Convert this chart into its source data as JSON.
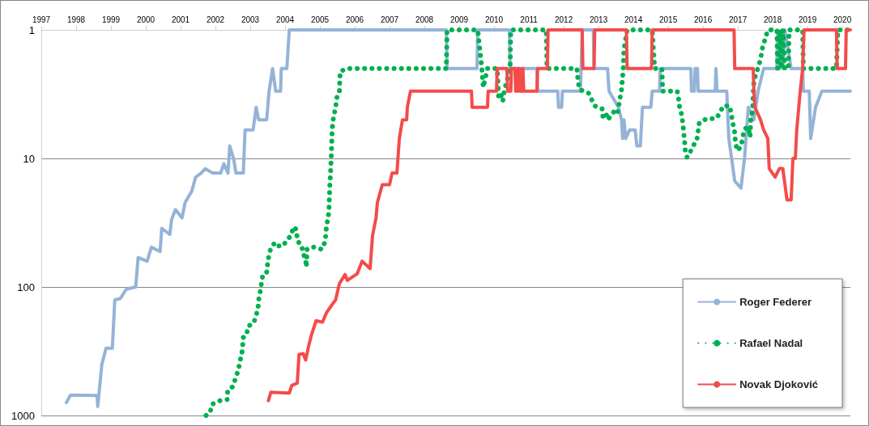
{
  "chart_data": {
    "type": "line",
    "xlim": [
      1997,
      2020.23
    ],
    "xticks": [
      1997,
      1998,
      1999,
      2000,
      2001,
      2002,
      2003,
      2004,
      2005,
      2006,
      2007,
      2008,
      2009,
      2010,
      2011,
      2012,
      2013,
      2014,
      2015,
      2016,
      2017,
      2018,
      2019,
      2020
    ],
    "ylim": [
      1000,
      1
    ],
    "yticks": [
      1,
      10,
      100,
      1000
    ],
    "log": "y",
    "grid": "y",
    "legend": "bottom right",
    "marker": "none",
    "series": [
      {
        "name": "Roger Federer",
        "color": "#95b3d7",
        "line_style": "solid",
        "x": [
          1997.72,
          1997.84,
          1998.6,
          1998.62,
          1998.74,
          1998.86,
          1999.04,
          1999.11,
          1999.27,
          1999.44,
          1999.71,
          1999.78,
          2000.04,
          2000.16,
          2000.41,
          2000.46,
          2000.69,
          2000.74,
          2000.85,
          2001.04,
          2001.13,
          2001.32,
          2001.43,
          2001.59,
          2001.71,
          2001.92,
          2002.15,
          2002.24,
          2002.36,
          2002.41,
          2002.52,
          2002.59,
          2002.8,
          2002.85,
          2003.08,
          2003.17,
          2003.24,
          2003.47,
          2003.54,
          2003.64,
          2003.73,
          2003.87,
          2003.89,
          2004.05,
          2004.12,
          2008.63,
          2008.65,
          2009.51,
          2009.53,
          2010.44,
          2010.46,
          2011.23,
          2011.25,
          2011.83,
          2011.85,
          2011.94,
          2011.96,
          2012.48,
          2012.5,
          2012.53,
          2012.85,
          2012.87,
          2013.26,
          2013.3,
          2013.57,
          2013.66,
          2013.69,
          2013.73,
          2013.78,
          2013.89,
          2014.05,
          2014.1,
          2014.2,
          2014.26,
          2014.5,
          2014.54,
          2014.75,
          2014.77,
          2015.65,
          2015.67,
          2015.75,
          2015.77,
          2015.84,
          2015.86,
          2016.35,
          2016.37,
          2016.4,
          2016.68,
          2016.74,
          2016.91,
          2017.09,
          2017.19,
          2017.3,
          2017.46,
          2017.58,
          2017.74,
          2018.12,
          2018.14,
          2018.2,
          2018.25,
          2018.3,
          2018.35,
          2018.53,
          2018.86,
          2018.88,
          2019.05,
          2019.09,
          2019.23,
          2019.41,
          2020.23
        ],
        "values": [
          794,
          694,
          700,
          850,
          398,
          300,
          300,
          126,
          123,
          104,
          100,
          59,
          63,
          49,
          53,
          35,
          39,
          30,
          25,
          29,
          22,
          18,
          14,
          13,
          12,
          13,
          13,
          11,
          13,
          8,
          10,
          13,
          13,
          6,
          6,
          4,
          5,
          5,
          3,
          2,
          3,
          3,
          2,
          2,
          1,
          1,
          2,
          2,
          1,
          1,
          2,
          2,
          3,
          3,
          4,
          4,
          3,
          3,
          2,
          1,
          1,
          2,
          2,
          3,
          4,
          5,
          7,
          5,
          7,
          6,
          6,
          8,
          8,
          4,
          4,
          3,
          3,
          2,
          2,
          3,
          3,
          2,
          2,
          3,
          3,
          2,
          3,
          3,
          7,
          15,
          17,
          10,
          4,
          5,
          3,
          2,
          2,
          1,
          2,
          1,
          2,
          1,
          2,
          2,
          3,
          3,
          7,
          4,
          3,
          3
        ]
      },
      {
        "name": "Rafael Nadal",
        "color": "#00b050",
        "line_style": "dotted",
        "x": [
          2001.73,
          2001.85,
          2001.9,
          2002.13,
          2002.34,
          2002.35,
          2002.5,
          2002.57,
          2002.66,
          2002.71,
          2002.75,
          2002.78,
          2002.8,
          2002.89,
          2002.94,
          2003.1,
          2003.17,
          2003.22,
          2003.24,
          2003.29,
          2003.33,
          2003.36,
          2003.47,
          2003.5,
          2003.54,
          2003.59,
          2003.71,
          2003.82,
          2003.94,
          2004.05,
          2004.17,
          2004.24,
          2004.33,
          2004.35,
          2004.47,
          2004.52,
          2004.59,
          2004.61,
          2004.63,
          2004.73,
          2004.87,
          2005.05,
          2005.14,
          2005.17,
          2005.19,
          2005.24,
          2005.26,
          2005.28,
          2005.31,
          2005.33,
          2005.35,
          2005.38,
          2005.45,
          2005.49,
          2005.56,
          2005.58,
          2005.79,
          2008.63,
          2008.65,
          2009.53,
          2009.65,
          2009.67,
          2009.69,
          2009.81,
          2010.09,
          2010.13,
          2010.18,
          2010.25,
          2010.29,
          2010.46,
          2010.47,
          2010.48,
          2011.5,
          2011.52,
          2012.38,
          2012.41,
          2012.45,
          2012.71,
          2012.89,
          2013.1,
          2013.13,
          2013.26,
          2013.29,
          2013.45,
          2013.54,
          2013.66,
          2013.71,
          2013.73,
          2013.82,
          2014.54,
          2014.61,
          2014.82,
          2014.84,
          2015.1,
          2015.26,
          2015.31,
          2015.33,
          2015.38,
          2015.42,
          2015.44,
          2015.47,
          2015.49,
          2015.54,
          2015.65,
          2015.75,
          2015.82,
          2015.86,
          2015.89,
          2016.1,
          2016.37,
          2016.47,
          2016.58,
          2016.77,
          2016.81,
          2016.86,
          2016.91,
          2016.93,
          2016.98,
          2017.09,
          2017.14,
          2017.19,
          2017.3,
          2017.35,
          2017.37,
          2017.42,
          2017.46,
          2017.65,
          2017.7,
          2017.86,
          2018.12,
          2018.14,
          2018.2,
          2018.25,
          2018.3,
          2018.35,
          2018.45,
          2018.47,
          2018.86,
          2018.88,
          2019.83,
          2019.87,
          2020.23
        ],
        "values": [
          1000,
          943,
          818,
          767,
          750,
          640,
          595,
          520,
          440,
          370,
          345,
          290,
          247,
          238,
          202,
          191,
          165,
          150,
          126,
          107,
          90,
          80,
          77,
          65,
          56,
          50,
          45,
          48,
          48,
          43,
          40,
          34,
          36,
          44,
          47,
          55,
          61,
          70,
          51,
          49,
          49,
          51,
          45,
          39,
          33,
          29,
          24,
          17,
          12,
          9,
          6,
          5,
          4,
          3.3,
          3,
          2.1,
          2,
          2,
          1,
          1,
          2,
          2.4,
          2.8,
          2,
          2,
          3.3,
          3.1,
          3.6,
          3,
          2,
          1.4,
          1,
          1,
          2,
          2,
          2.5,
          2.9,
          3.1,
          3.9,
          4.1,
          4.9,
          4.5,
          4.9,
          4.3,
          4.5,
          2.9,
          2,
          1.4,
          1,
          1,
          2,
          2,
          3,
          3,
          3,
          3.6,
          4.1,
          4.5,
          5.3,
          6.1,
          7.3,
          8.7,
          9.8,
          8.7,
          7.7,
          7.3,
          6.1,
          5.3,
          4.9,
          4.9,
          4.5,
          3.9,
          3.9,
          4.5,
          5.4,
          6.3,
          7.5,
          8.7,
          8.1,
          6.8,
          5.9,
          5.7,
          6.8,
          5,
          4.3,
          2.5,
          1.7,
          1.4,
          1,
          1,
          2,
          1,
          2,
          1,
          2,
          2,
          1,
          1,
          2,
          2,
          1,
          1
        ]
      },
      {
        "name": "Novak Djoković",
        "color": "#f44b4b",
        "line_style": "solid",
        "x": [
          2003.52,
          2003.59,
          2004.12,
          2004.19,
          2004.35,
          2004.4,
          2004.52,
          2004.59,
          2004.68,
          2004.75,
          2004.89,
          2005.07,
          2005.19,
          2005.35,
          2005.45,
          2005.56,
          2005.72,
          2005.79,
          2006.07,
          2006.21,
          2006.44,
          2006.51,
          2006.61,
          2006.65,
          2006.79,
          2007,
          2007.07,
          2007.21,
          2007.28,
          2007.37,
          2007.49,
          2007.51,
          2007.6,
          2009.35,
          2009.37,
          2009.81,
          2009.83,
          2010.07,
          2010.09,
          2010.37,
          2010.39,
          2010.48,
          2010.5,
          2010.6,
          2010.62,
          2010.67,
          2010.69,
          2010.72,
          2010.74,
          2010.79,
          2010.81,
          2010.83,
          2010.85,
          2011.23,
          2011.25,
          2011.53,
          2011.55,
          2012.53,
          2012.55,
          2012.87,
          2012.89,
          2013.8,
          2013.82,
          2014.52,
          2014.54,
          2016.89,
          2016.91,
          2017.44,
          2017.46,
          2017.49,
          2017.65,
          2017.74,
          2017.86,
          2017.9,
          2018.07,
          2018.19,
          2018.29,
          2018.41,
          2018.53,
          2018.58,
          2018.65,
          2018.69,
          2018.79,
          2018.86,
          2018.9,
          2019.83,
          2019.85,
          2020.09,
          2020.11,
          2020.23
        ],
        "values": [
          767,
          660,
          670,
          584,
          560,
          335,
          330,
          370,
          285,
          240,
          183,
          188,
          158,
          137,
          126,
          94,
          80,
          89,
          79,
          63,
          72,
          40,
          29,
          22,
          16,
          16,
          13,
          13,
          7,
          5,
          5,
          4,
          3,
          3,
          4,
          4,
          3,
          3,
          2,
          2,
          3,
          3,
          2,
          2,
          3,
          3,
          2,
          2,
          3,
          3,
          2,
          2,
          3,
          3,
          2,
          2,
          1,
          1,
          2,
          2,
          1,
          1,
          2,
          2,
          1,
          1,
          2,
          2,
          3,
          4,
          5,
          6,
          7,
          12,
          14,
          12,
          12,
          21,
          21,
          10,
          10,
          6,
          3,
          2,
          1,
          1,
          2,
          2,
          1,
          1
        ]
      }
    ]
  }
}
